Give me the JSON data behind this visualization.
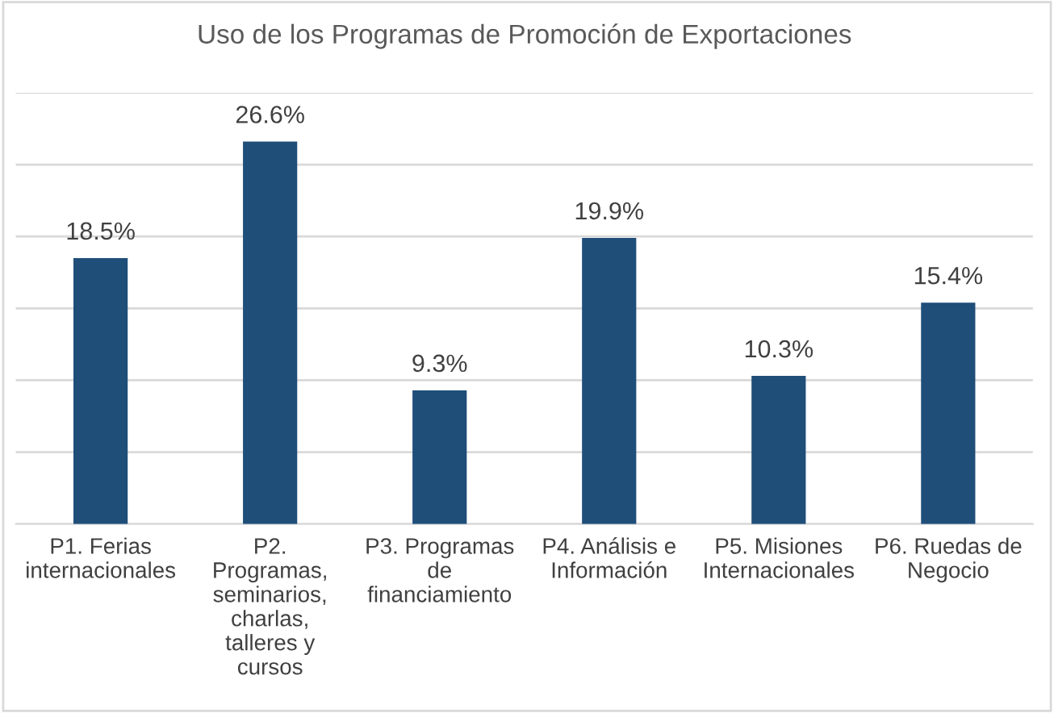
{
  "chart_data": {
    "type": "bar",
    "title": "Uso de los Programas de Promoción de Exportaciones",
    "categories": [
      "P1. Ferias\ninternacionales",
      "P2.\nProgramas,\nseminarios,\ncharlas,\ntalleres y\ncursos",
      "P3. Programas\nde\nfinanciamiento",
      "P4. Análisis e\nInformación",
      "P5. Misiones\nInternacionales",
      "P6. Ruedas de\nNegocio"
    ],
    "values": [
      18.5,
      26.6,
      9.3,
      19.9,
      10.3,
      15.4
    ],
    "value_labels": [
      "18.5%",
      "26.6%",
      "9.3%",
      "19.9%",
      "10.3%",
      "15.4%"
    ],
    "color": "#1f4e79",
    "ylim": [
      0,
      30
    ],
    "yticks": [
      {
        "value": 0,
        "label": null
      },
      {
        "value": 5,
        "label": null
      },
      {
        "value": 10,
        "label": null
      },
      {
        "value": 15,
        "label": null
      },
      {
        "value": 20,
        "label": null
      },
      {
        "value": 25,
        "label": null
      },
      {
        "value": 30,
        "label": null
      }
    ],
    "grid": "y",
    "tick_labels": "x"
  }
}
